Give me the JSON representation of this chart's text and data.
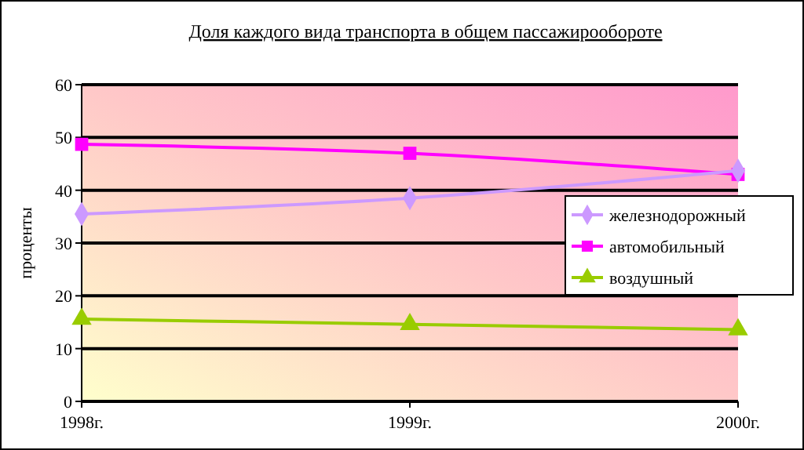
{
  "chart_data": {
    "type": "line",
    "title": "Доля каждого вида транспорта в общем пассажирообороте",
    "ylabel": "проценты",
    "categories": [
      "1998г.",
      "1999г.",
      "2000г."
    ],
    "ylim": [
      0,
      60
    ],
    "yticks": [
      0,
      10,
      20,
      30,
      40,
      50,
      60
    ],
    "grid": "y",
    "legend": "right",
    "series": [
      {
        "name": "железнодорожный",
        "color": "#cc99ff",
        "marker": "diamond",
        "values": [
          35.5,
          38.5,
          43.7
        ]
      },
      {
        "name": "автомобильный",
        "color": "#ff00ff",
        "marker": "square",
        "values": [
          48.7,
          47,
          43
        ]
      },
      {
        "name": "воздушный",
        "color": "#99cc00",
        "marker": "triangle",
        "values": [
          15.6,
          14.6,
          13.6
        ]
      }
    ]
  }
}
